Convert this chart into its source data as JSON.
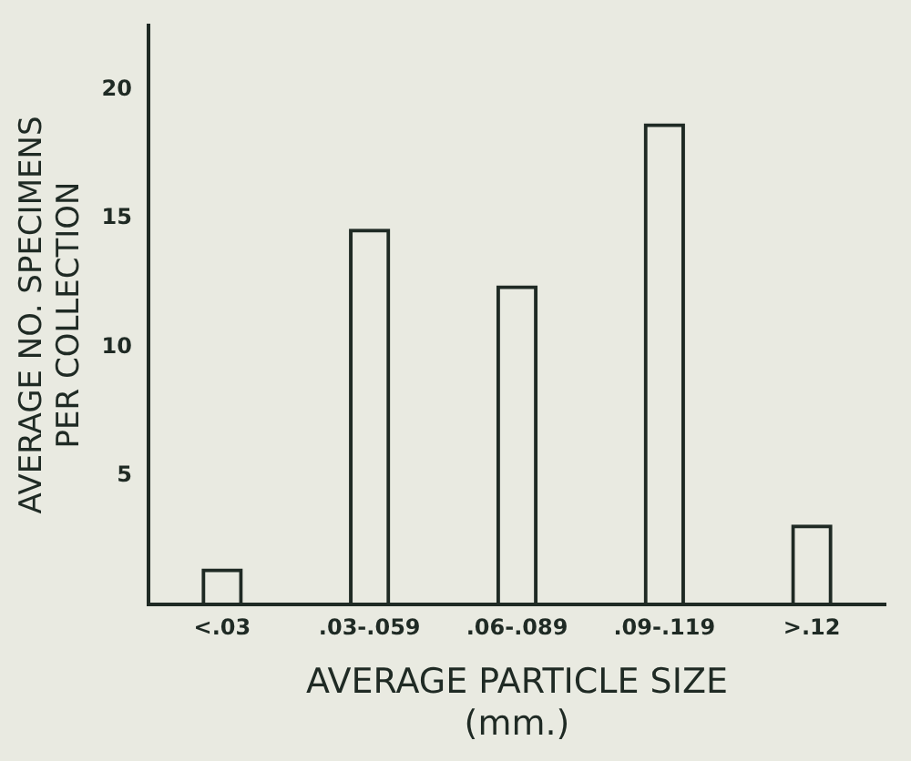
{
  "chart_data": {
    "type": "bar",
    "xlabel": "AVERAGE PARTICLE SIZE\n(mm.)",
    "ylabel": "AVERAGE NO. SPECIMENS\nPER COLLECTION",
    "categories": [
      "<.03",
      ".03-.059",
      ".06-.089",
      ".09-.119",
      ">.12"
    ],
    "values": [
      1.4,
      14.6,
      12.4,
      18.7,
      3.1
    ],
    "color": "#1f2a24",
    "ylim": [
      0,
      22.5
    ],
    "yticks": [
      5,
      10,
      15,
      20
    ],
    "grid": false,
    "legend": false
  }
}
